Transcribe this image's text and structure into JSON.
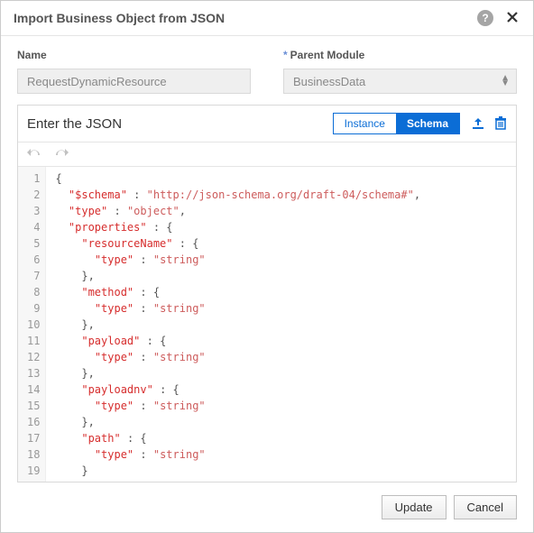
{
  "dialog": {
    "title": "Import Business Object from JSON"
  },
  "form": {
    "name_label": "Name",
    "name_value": "RequestDynamicResource",
    "parent_label": "Parent Module",
    "parent_value": "BusinessData"
  },
  "editor": {
    "header": "Enter the JSON",
    "segments": {
      "instance": "Instance",
      "schema": "Schema",
      "active": "schema"
    },
    "icons": {
      "upload": "upload-icon",
      "trash": "trash-icon"
    },
    "code_tokens": [
      [
        [
          "p",
          "{"
        ]
      ],
      [
        [
          "p",
          "  "
        ],
        [
          "k",
          "\"$schema\""
        ],
        [
          "p",
          " : "
        ],
        [
          "s",
          "\"http://json-schema.org/draft-04/schema#\""
        ],
        [
          "p",
          ","
        ]
      ],
      [
        [
          "p",
          "  "
        ],
        [
          "k",
          "\"type\""
        ],
        [
          "p",
          " : "
        ],
        [
          "s",
          "\"object\""
        ],
        [
          "p",
          ","
        ]
      ],
      [
        [
          "p",
          "  "
        ],
        [
          "k",
          "\"properties\""
        ],
        [
          "p",
          " : {"
        ]
      ],
      [
        [
          "p",
          "    "
        ],
        [
          "k",
          "\"resourceName\""
        ],
        [
          "p",
          " : {"
        ]
      ],
      [
        [
          "p",
          "      "
        ],
        [
          "k",
          "\"type\""
        ],
        [
          "p",
          " : "
        ],
        [
          "s",
          "\"string\""
        ]
      ],
      [
        [
          "p",
          "    },"
        ]
      ],
      [
        [
          "p",
          "    "
        ],
        [
          "k",
          "\"method\""
        ],
        [
          "p",
          " : {"
        ]
      ],
      [
        [
          "p",
          "      "
        ],
        [
          "k",
          "\"type\""
        ],
        [
          "p",
          " : "
        ],
        [
          "s",
          "\"string\""
        ]
      ],
      [
        [
          "p",
          "    },"
        ]
      ],
      [
        [
          "p",
          "    "
        ],
        [
          "k",
          "\"payload\""
        ],
        [
          "p",
          " : {"
        ]
      ],
      [
        [
          "p",
          "      "
        ],
        [
          "k",
          "\"type\""
        ],
        [
          "p",
          " : "
        ],
        [
          "s",
          "\"string\""
        ]
      ],
      [
        [
          "p",
          "    },"
        ]
      ],
      [
        [
          "p",
          "    "
        ],
        [
          "k",
          "\"payloadnv\""
        ],
        [
          "p",
          " : {"
        ]
      ],
      [
        [
          "p",
          "      "
        ],
        [
          "k",
          "\"type\""
        ],
        [
          "p",
          " : "
        ],
        [
          "s",
          "\"string\""
        ]
      ],
      [
        [
          "p",
          "    },"
        ]
      ],
      [
        [
          "p",
          "    "
        ],
        [
          "k",
          "\"path\""
        ],
        [
          "p",
          " : {"
        ]
      ],
      [
        [
          "p",
          "      "
        ],
        [
          "k",
          "\"type\""
        ],
        [
          "p",
          " : "
        ],
        [
          "s",
          "\"string\""
        ]
      ],
      [
        [
          "p",
          "    }"
        ]
      ],
      [
        [
          "p",
          "  }"
        ]
      ],
      [
        [
          "p",
          "}"
        ]
      ]
    ]
  },
  "footer": {
    "update": "Update",
    "cancel": "Cancel"
  },
  "colors": {
    "accent": "#0b6dd6",
    "key": "#d62d2d",
    "string": "#cd5c5c",
    "gutter_bg": "#f7f7f7"
  }
}
